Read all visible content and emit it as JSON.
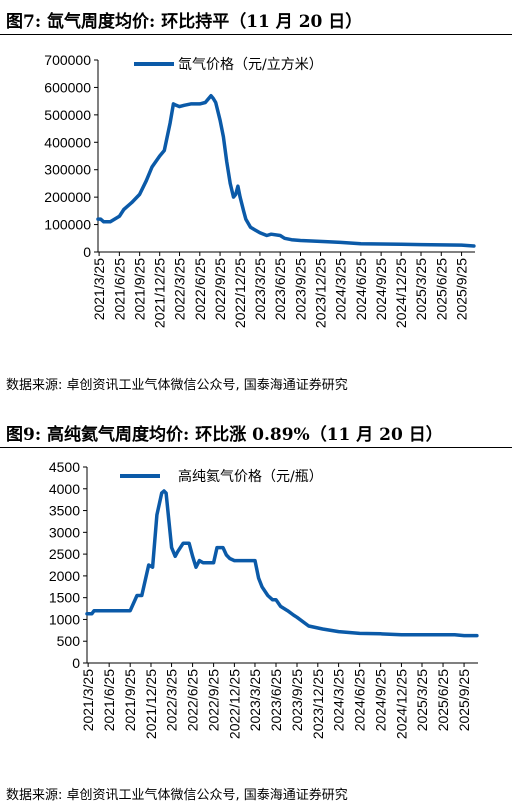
{
  "figures": [
    {
      "heading": "图7: 氙气周度均价: 环比持平（11 月 20 日）",
      "source": "数据来源: 卓创资讯工业气体微信公众号, 国泰海通证券研究"
    },
    {
      "heading": "图9: 高纯氦气周度均价: 环比涨 0.89%（11 月 20 日）",
      "source": "数据来源: 卓创资讯工业气体微信公众号, 国泰海通证券研究"
    }
  ],
  "chart_data": [
    {
      "type": "line",
      "legend": "氙气价格（元/立方米）",
      "color": "#0b5aa8",
      "ylim": [
        0,
        700000
      ],
      "y_ticks": [
        0,
        100000,
        200000,
        300000,
        400000,
        500000,
        600000,
        700000
      ],
      "x_ticks": [
        "2021/3/25",
        "2021/6/25",
        "2021/9/25",
        "2021/12/25",
        "2022/3/25",
        "2022/6/25",
        "2022/9/25",
        "2022/12/25",
        "2023/3/25",
        "2023/6/25",
        "2023/9/25",
        "2023/12/25",
        "2024/3/25",
        "2024/6/25",
        "2024/9/25",
        "2024/12/25",
        "2025/3/25",
        "2025/6/25",
        "2025/9/25"
      ],
      "xlim": [
        "2021/3/20",
        "2025/11/25"
      ],
      "grid": false,
      "legend_position": "top",
      "series": [
        {
          "x": [
            "2021/3/20",
            "2021/4/1",
            "2021/4/15",
            "2021/5/15",
            "2021/6/25",
            "2021/7/15",
            "2021/8/20",
            "2021/9/25",
            "2021/10/25",
            "2021/11/20",
            "2021/12/25",
            "2022/1/15",
            "2022/2/10",
            "2022/2/25",
            "2022/3/10",
            "2022/3/25",
            "2022/4/15",
            "2022/5/15",
            "2022/6/25",
            "2022/7/20",
            "2022/8/15",
            "2022/8/25",
            "2022/9/5",
            "2022/9/25",
            "2022/10/10",
            "2022/10/25",
            "2022/11/10",
            "2022/11/25",
            "2022/12/5",
            "2022/12/15",
            "2022/12/25",
            "2023/1/10",
            "2023/1/20",
            "2023/2/10",
            "2023/3/25",
            "2023/4/25",
            "2023/5/15",
            "2023/6/25",
            "2023/7/15",
            "2023/8/15",
            "2023/9/25",
            "2023/11/15",
            "2024/1/15",
            "2024/3/25",
            "2024/6/25",
            "2024/9/25",
            "2024/12/25",
            "2025/3/25",
            "2025/6/25",
            "2025/9/25",
            "2025/11/20"
          ],
          "y": [
            120000,
            120000,
            110000,
            110000,
            130000,
            155000,
            180000,
            210000,
            260000,
            310000,
            350000,
            370000,
            470000,
            540000,
            535000,
            530000,
            535000,
            540000,
            540000,
            545000,
            570000,
            560000,
            545000,
            480000,
            420000,
            330000,
            250000,
            200000,
            210000,
            240000,
            200000,
            150000,
            120000,
            90000,
            70000,
            60000,
            65000,
            60000,
            50000,
            45000,
            42000,
            40000,
            38000,
            35000,
            30000,
            29000,
            28000,
            27000,
            26000,
            25000,
            22000
          ]
        }
      ]
    },
    {
      "type": "line",
      "legend": "高纯氦气价格（元/瓶）",
      "color": "#0b5aa8",
      "ylim": [
        0,
        4500
      ],
      "y_ticks": [
        0,
        500,
        1000,
        1500,
        2000,
        2500,
        3000,
        3500,
        4000,
        4500
      ],
      "x_ticks": [
        "2021/3/25",
        "2021/6/25",
        "2021/9/25",
        "2021/12/25",
        "2022/3/25",
        "2022/6/25",
        "2022/9/25",
        "2022/12/25",
        "2023/3/25",
        "2023/6/25",
        "2023/9/25",
        "2023/12/25",
        "2024/3/25",
        "2024/6/25",
        "2024/9/25",
        "2024/12/25",
        "2025/3/25",
        "2025/6/25",
        "2025/9/25"
      ],
      "xlim": [
        "2021/3/20",
        "2025/11/25"
      ],
      "grid": false,
      "legend_position": "top",
      "series": [
        {
          "x": [
            "2021/3/20",
            "2021/4/10",
            "2021/4/20",
            "2021/6/25",
            "2021/9/25",
            "2021/10/25",
            "2021/11/15",
            "2021/12/15",
            "2022/1/1",
            "2022/1/20",
            "2022/2/10",
            "2022/2/20",
            "2022/3/1",
            "2022/3/25",
            "2022/4/10",
            "2022/4/20",
            "2022/5/15",
            "2022/6/10",
            "2022/6/25",
            "2022/7/10",
            "2022/7/25",
            "2022/8/10",
            "2022/9/25",
            "2022/10/10",
            "2022/11/5",
            "2022/11/20",
            "2022/12/5",
            "2022/12/25",
            "2023/1/15",
            "2023/3/25",
            "2023/4/10",
            "2023/4/25",
            "2023/5/20",
            "2023/6/10",
            "2023/6/25",
            "2023/7/15",
            "2023/8/15",
            "2023/9/10",
            "2023/9/25",
            "2023/11/15",
            "2024/1/15",
            "2024/3/25",
            "2024/6/25",
            "2024/9/25",
            "2024/12/25",
            "2025/3/25",
            "2025/6/25",
            "2025/8/15",
            "2025/9/25",
            "2025/11/20"
          ],
          "y": [
            1130,
            1130,
            1200,
            1200,
            1200,
            1550,
            1550,
            2250,
            2200,
            3400,
            3900,
            3950,
            3900,
            2650,
            2450,
            2550,
            2750,
            2750,
            2450,
            2200,
            2350,
            2300,
            2300,
            2650,
            2650,
            2480,
            2400,
            2350,
            2350,
            2350,
            1950,
            1750,
            1550,
            1450,
            1450,
            1300,
            1200,
            1100,
            1050,
            850,
            780,
            720,
            680,
            670,
            650,
            650,
            650,
            650,
            630,
            630
          ]
        }
      ]
    }
  ]
}
